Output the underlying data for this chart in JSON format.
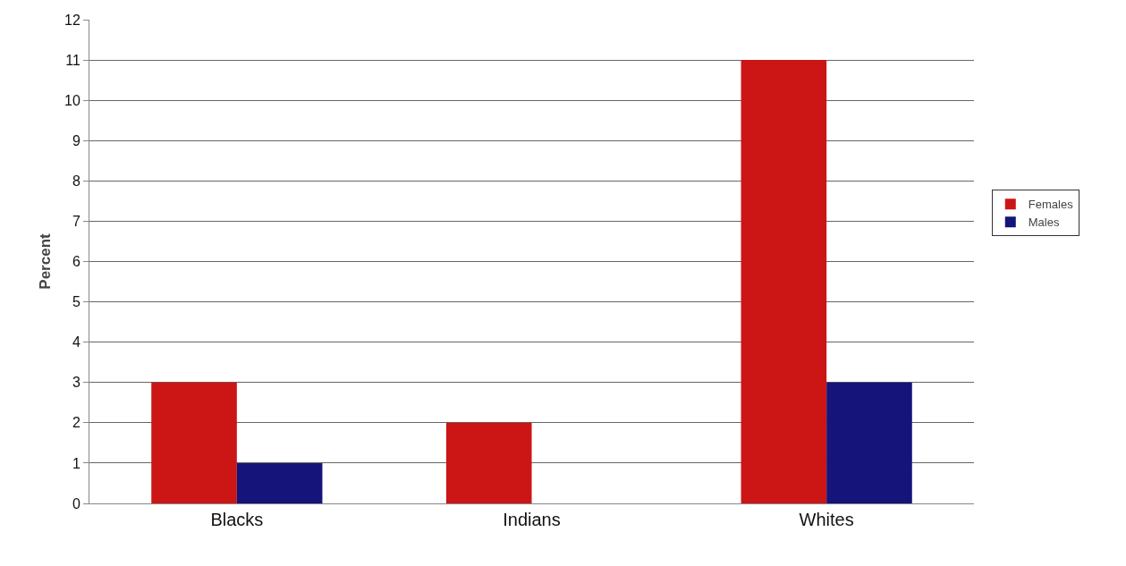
{
  "chart_data": {
    "type": "bar",
    "ylabel": "Percent",
    "categories": [
      "Blacks",
      "Indians",
      "Whites"
    ],
    "series": [
      {
        "name": "Females",
        "color": "#cc1515",
        "values": [
          3,
          2,
          11
        ]
      },
      {
        "name": "Males",
        "color": "#14147a",
        "values": [
          1,
          null,
          3
        ]
      }
    ],
    "ylim": [
      0,
      12
    ],
    "yticks": [
      0,
      1,
      2,
      3,
      4,
      5,
      6,
      7,
      8,
      9,
      10,
      11,
      12
    ],
    "grid": "y",
    "legend": "right"
  }
}
